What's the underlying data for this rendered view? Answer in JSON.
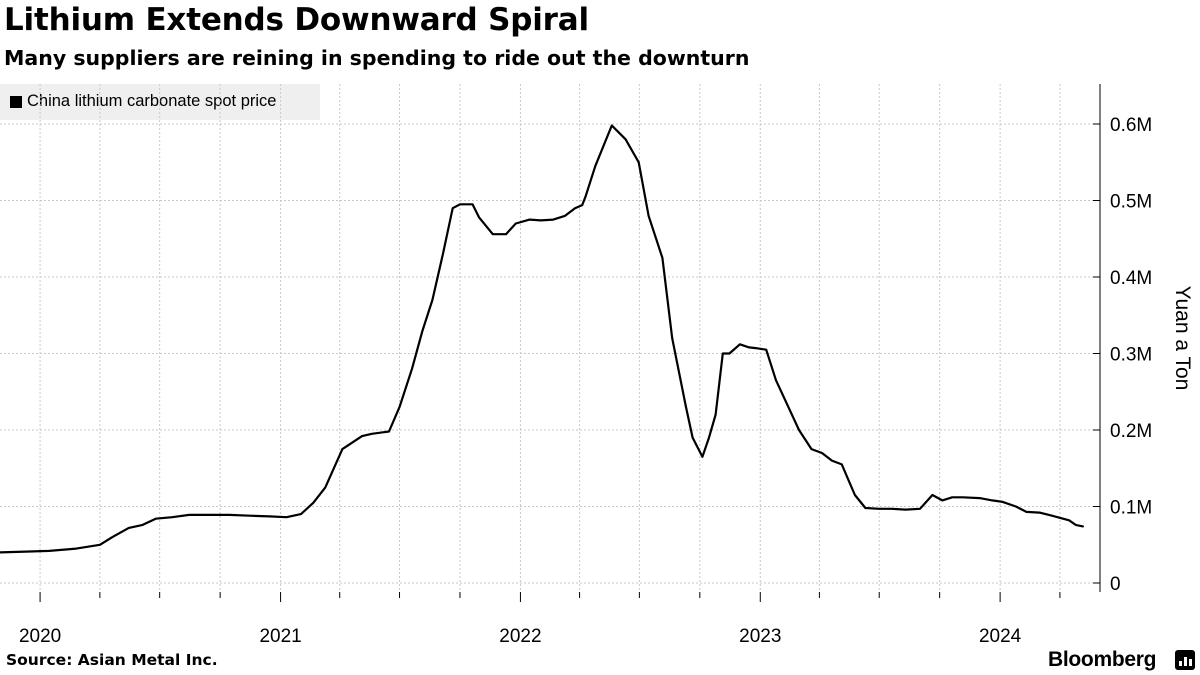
{
  "header": {
    "title": "Lithium Extends Downward Spiral",
    "subtitle": "Many suppliers are reining in spending to ride out the downturn"
  },
  "footer": {
    "source": "Source: Asian Metal Inc.",
    "brand": "Bloomberg"
  },
  "chart_data": {
    "type": "line",
    "title": "Lithium Extends Downward Spiral",
    "subtitle": "Many suppliers are reining in spending to ride out the downturn",
    "ylabel": "Yuan a Ton",
    "y_axis_position": "right",
    "xlabel": "",
    "ylim": [
      0,
      650000
    ],
    "xlim": [
      "2019-11-01",
      "2024-06-01"
    ],
    "y_ticks": [
      0,
      100000,
      200000,
      300000,
      400000,
      500000,
      600000
    ],
    "y_tick_labels": [
      "0",
      "0.1M",
      "0.2M",
      "0.3M",
      "0.4M",
      "0.5M",
      "0.6M"
    ],
    "x_tick_labels": [
      "2020",
      "2021",
      "2022",
      "2023",
      "2024"
    ],
    "x_label_positions": [
      "2020-01-01",
      "2021-01-01",
      "2022-01-01",
      "2023-01-01",
      "2024-01-01"
    ],
    "grid": true,
    "legend_position": "top-left",
    "colors": {
      "line": "#000000",
      "grid": "#c8c8c8",
      "legend_bg": "#efefef"
    },
    "series": [
      {
        "name": "China lithium carbonate spot price",
        "x": [
          "2019-11-01",
          "2019-12-10",
          "2020-01-15",
          "2020-02-25",
          "2020-04-01",
          "2020-04-20",
          "2020-05-15",
          "2020-06-05",
          "2020-06-25",
          "2020-07-20",
          "2020-08-15",
          "2020-10-15",
          "2020-11-15",
          "2020-12-15",
          "2021-01-10",
          "2021-02-01",
          "2021-02-20",
          "2021-03-10",
          "2021-04-05",
          "2021-05-05",
          "2021-05-20",
          "2021-06-15",
          "2021-07-01",
          "2021-07-20",
          "2021-08-05",
          "2021-08-20",
          "2021-09-05",
          "2021-09-20",
          "2021-10-01",
          "2021-10-20",
          "2021-10-30",
          "2021-11-20",
          "2021-12-10",
          "2021-12-25",
          "2022-01-15",
          "2022-02-01",
          "2022-02-20",
          "2022-03-10",
          "2022-03-25",
          "2022-04-05",
          "2022-04-10",
          "2022-04-25",
          "2022-05-20",
          "2022-06-10",
          "2022-06-30",
          "2022-07-15",
          "2022-08-05",
          "2022-08-20",
          "2022-09-10",
          "2022-09-20",
          "2022-10-05",
          "2022-10-15",
          "2022-10-25",
          "2022-11-05",
          "2022-11-15",
          "2022-12-01",
          "2022-12-15",
          "2022-12-25",
          "2023-01-10",
          "2023-01-25",
          "2023-02-10",
          "2023-03-01",
          "2023-03-20",
          "2023-04-05",
          "2023-04-20",
          "2023-05-05",
          "2023-05-15",
          "2023-05-25",
          "2023-06-10",
          "2023-07-01",
          "2023-07-20",
          "2023-08-10",
          "2023-09-01",
          "2023-09-20",
          "2023-10-05",
          "2023-10-20",
          "2023-11-05",
          "2023-12-01",
          "2023-12-20",
          "2024-01-05",
          "2024-01-25",
          "2024-02-10",
          "2024-03-01",
          "2024-03-20",
          "2024-04-15",
          "2024-04-25",
          "2024-05-06"
        ],
        "values": [
          40000,
          41000,
          42000,
          45000,
          50000,
          60000,
          72000,
          76000,
          84000,
          86000,
          89000,
          89000,
          88000,
          87000,
          86000,
          90000,
          105000,
          125000,
          175000,
          192000,
          195000,
          198000,
          230000,
          280000,
          330000,
          370000,
          430000,
          490000,
          495000,
          495000,
          478000,
          456000,
          456000,
          470000,
          475000,
          474000,
          475000,
          480000,
          490000,
          494000,
          505000,
          545000,
          598000,
          580000,
          550000,
          480000,
          425000,
          320000,
          230000,
          190000,
          165000,
          190000,
          220000,
          300000,
          300000,
          312000,
          308000,
          307000,
          305000,
          265000,
          235000,
          200000,
          175000,
          170000,
          160000,
          155000,
          135000,
          115000,
          98000,
          97000,
          97000,
          96000,
          97000,
          115000,
          108000,
          112000,
          112000,
          111000,
          108000,
          106000,
          100000,
          93000,
          92000,
          88000,
          82000,
          76000,
          74000
        ]
      }
    ]
  }
}
